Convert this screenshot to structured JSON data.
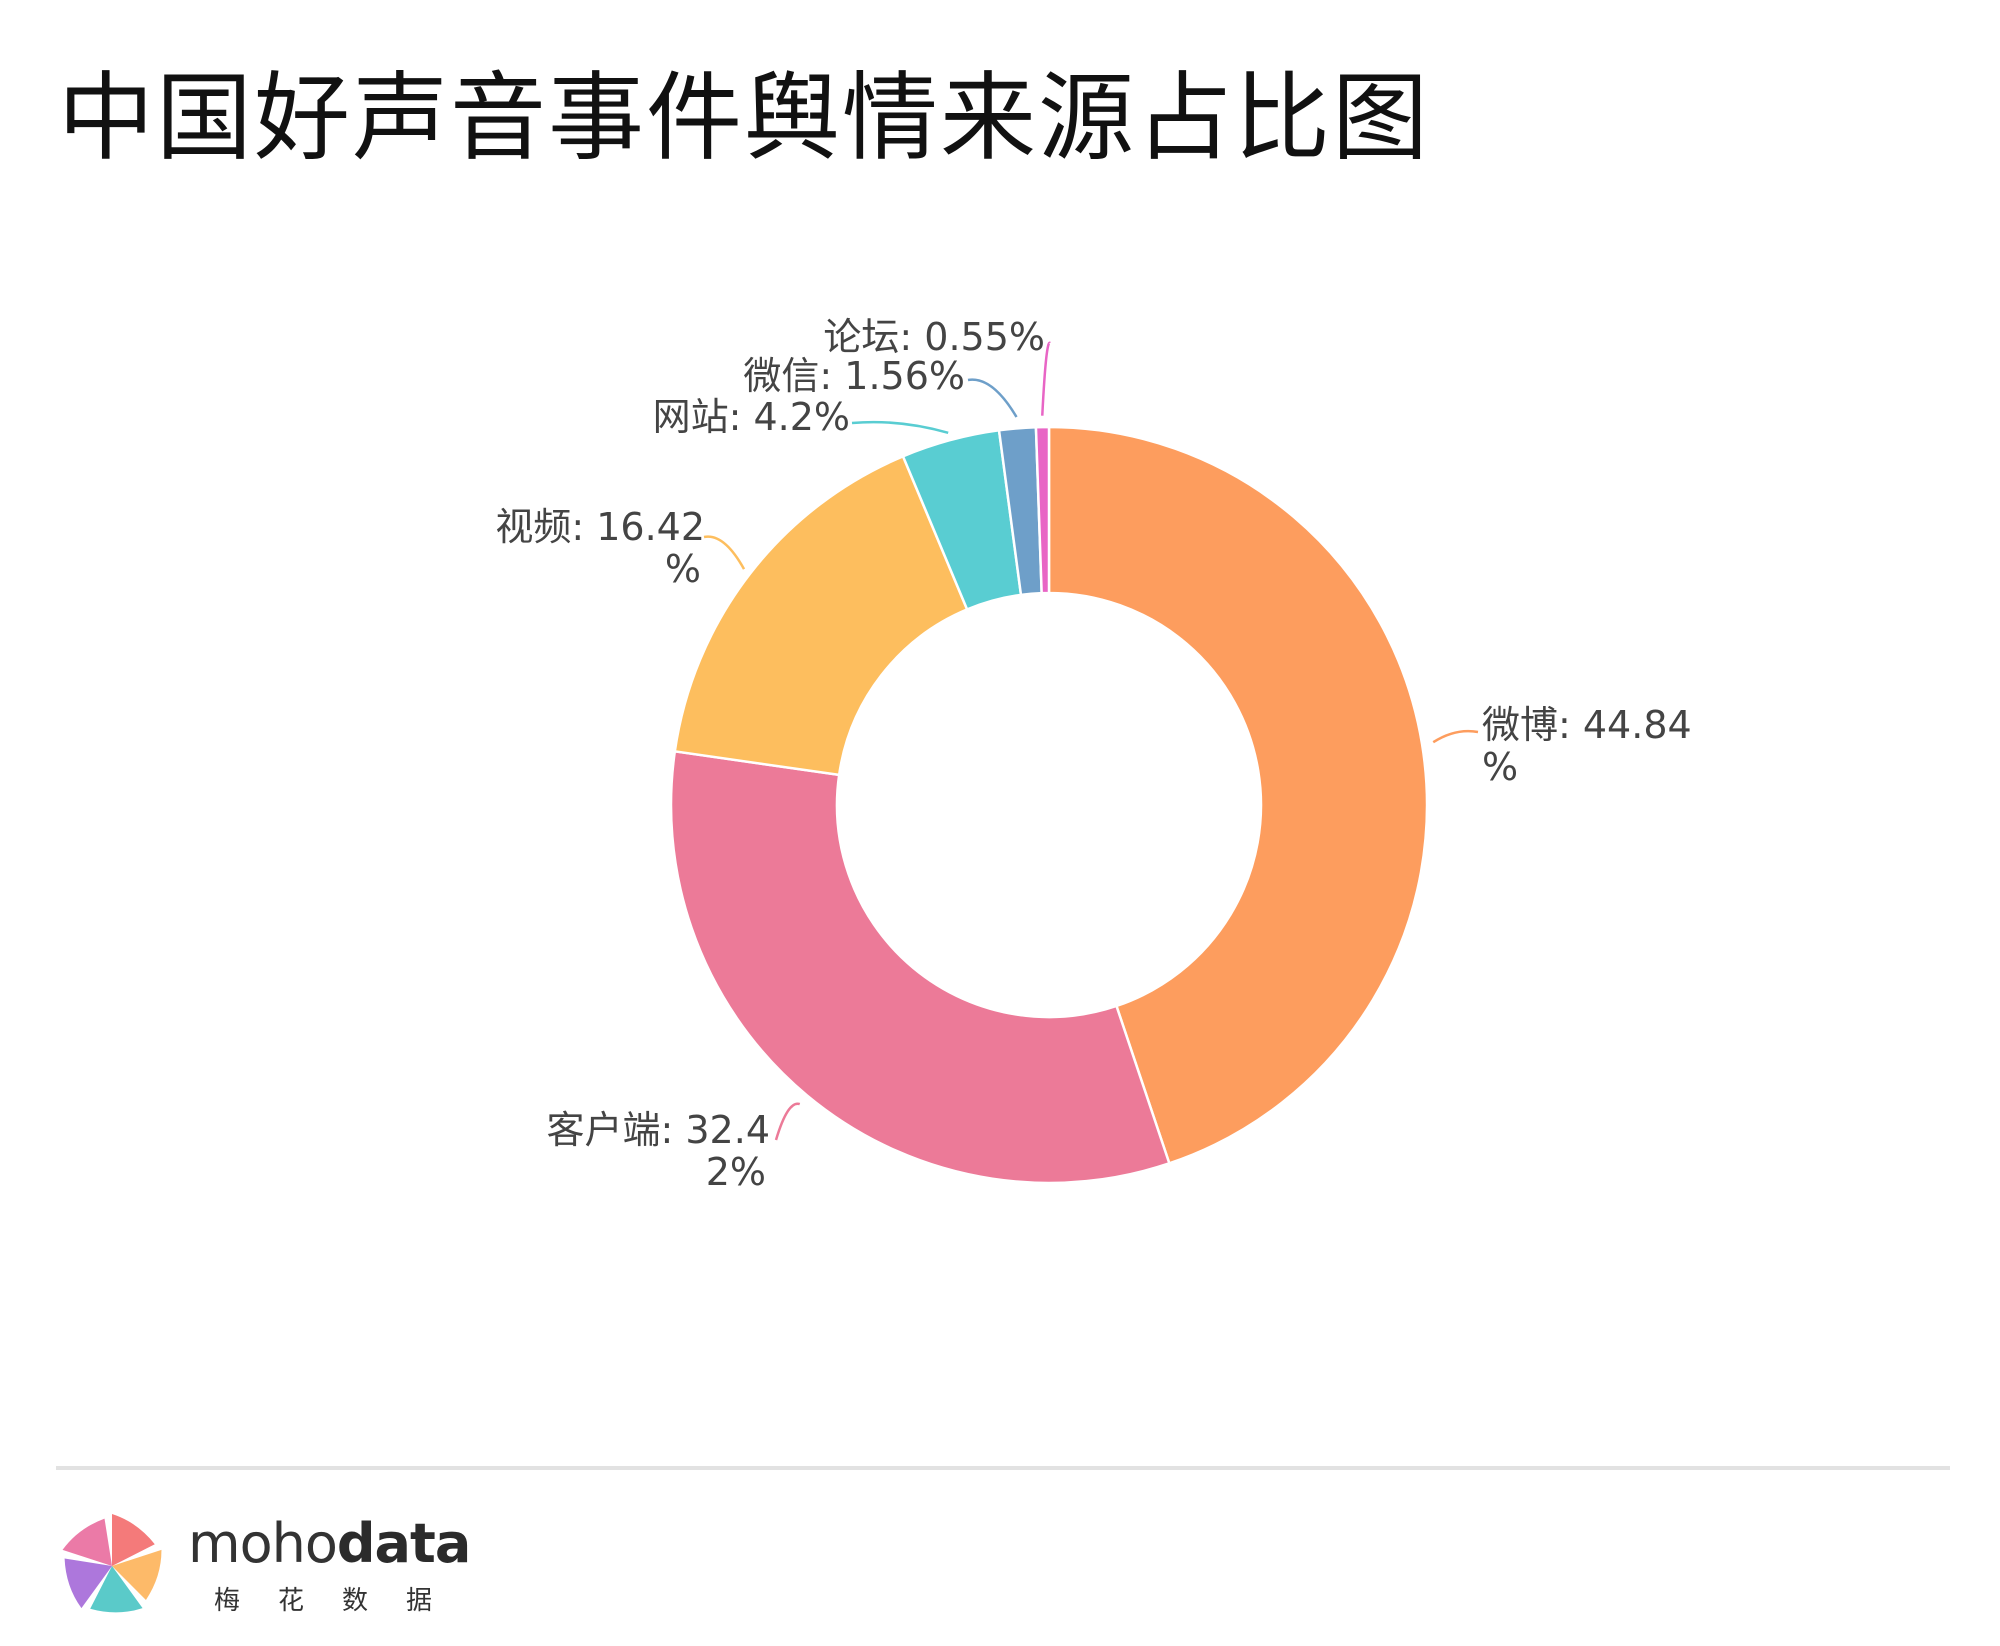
{
  "title": "中国好声音事件舆情来源占比图",
  "chart_data": {
    "type": "pie",
    "variant": "donut",
    "title": "中国好声音事件舆情来源占比图",
    "unit": "%",
    "slices": [
      {
        "label": "微博",
        "value": 44.84,
        "color": "#fd9d5e",
        "line1": "微博: 44.84",
        "line2": "%"
      },
      {
        "label": "客户端",
        "value": 32.42,
        "color": "#ec7a98",
        "line1": "客户端: 32.4",
        "line2": "2%"
      },
      {
        "label": "视频",
        "value": 16.42,
        "color": "#fdbe5e",
        "line1": "视频: 16.42",
        "line2": "%"
      },
      {
        "label": "网站",
        "value": 4.2,
        "color": "#59cdd2",
        "line1": "网站: 4.2%",
        "line2": ""
      },
      {
        "label": "微信",
        "value": 1.56,
        "color": "#6e9fc9",
        "line1": "微信: 1.56%",
        "line2": ""
      },
      {
        "label": "论坛",
        "value": 0.55,
        "color": "#e865c5",
        "line1": "论坛: 0.55%",
        "line2": ""
      }
    ]
  },
  "footer": {
    "brand_light": "moho",
    "brand_bold": "data",
    "brand_cn": "梅花数据",
    "logo_colors": [
      "#f36f6f",
      "#fdb45c",
      "#4cc5c4",
      "#a66bd9",
      "#e96fa0"
    ]
  }
}
